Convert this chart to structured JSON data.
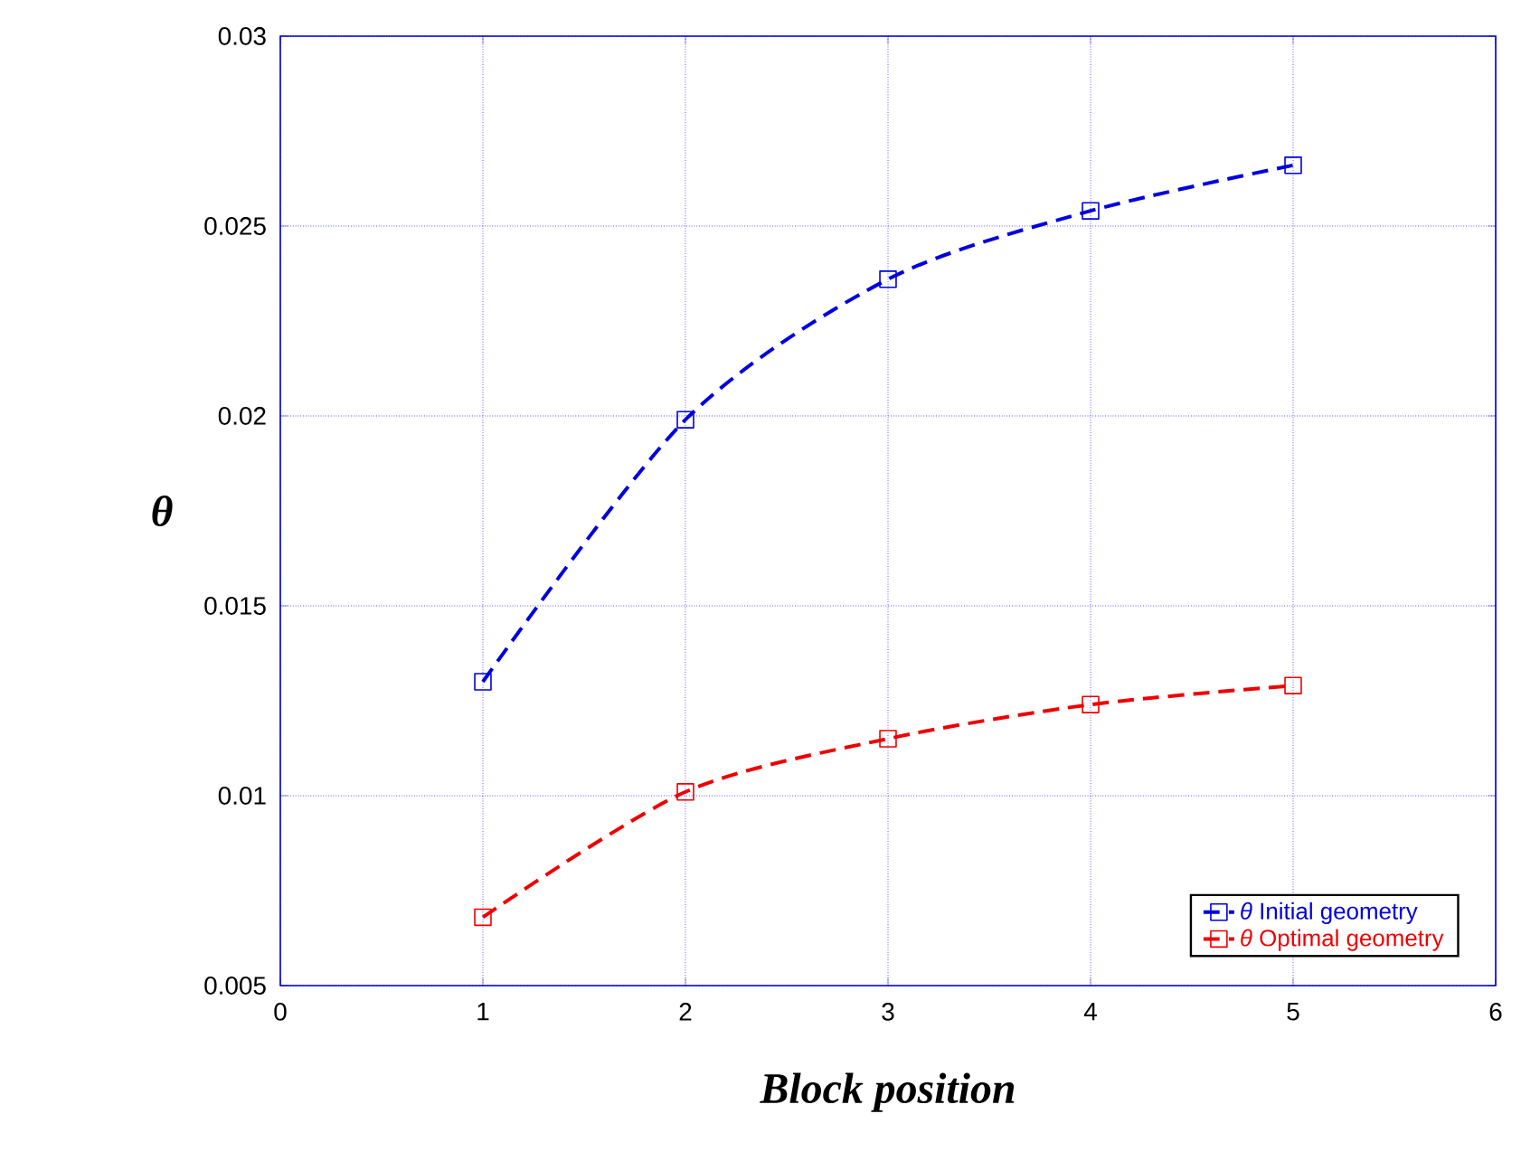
{
  "chart_data": {
    "type": "line",
    "xlabel": "Block position",
    "ylabel": "θ",
    "x": [
      1,
      2,
      3,
      4,
      5
    ],
    "series": [
      {
        "name": "*θ* Initial geometry",
        "color": "#0000dd",
        "values": [
          0.013,
          0.0199,
          0.0236,
          0.0254,
          0.0266
        ]
      },
      {
        "name": "*θ* Optimal geometry",
        "color": "#ee0000",
        "values": [
          0.0068,
          0.0101,
          0.0115,
          0.0124,
          0.0129
        ]
      }
    ],
    "xlim": [
      0,
      6
    ],
    "ylim": [
      0.005,
      0.03
    ],
    "xticks": [
      0,
      1,
      2,
      3,
      4,
      5,
      6
    ],
    "yticks": [
      0.005,
      0.01,
      0.015,
      0.02,
      0.025,
      0.03
    ],
    "grid": true,
    "legend": "bottom right",
    "marker": "square",
    "line_style": "dashed"
  }
}
